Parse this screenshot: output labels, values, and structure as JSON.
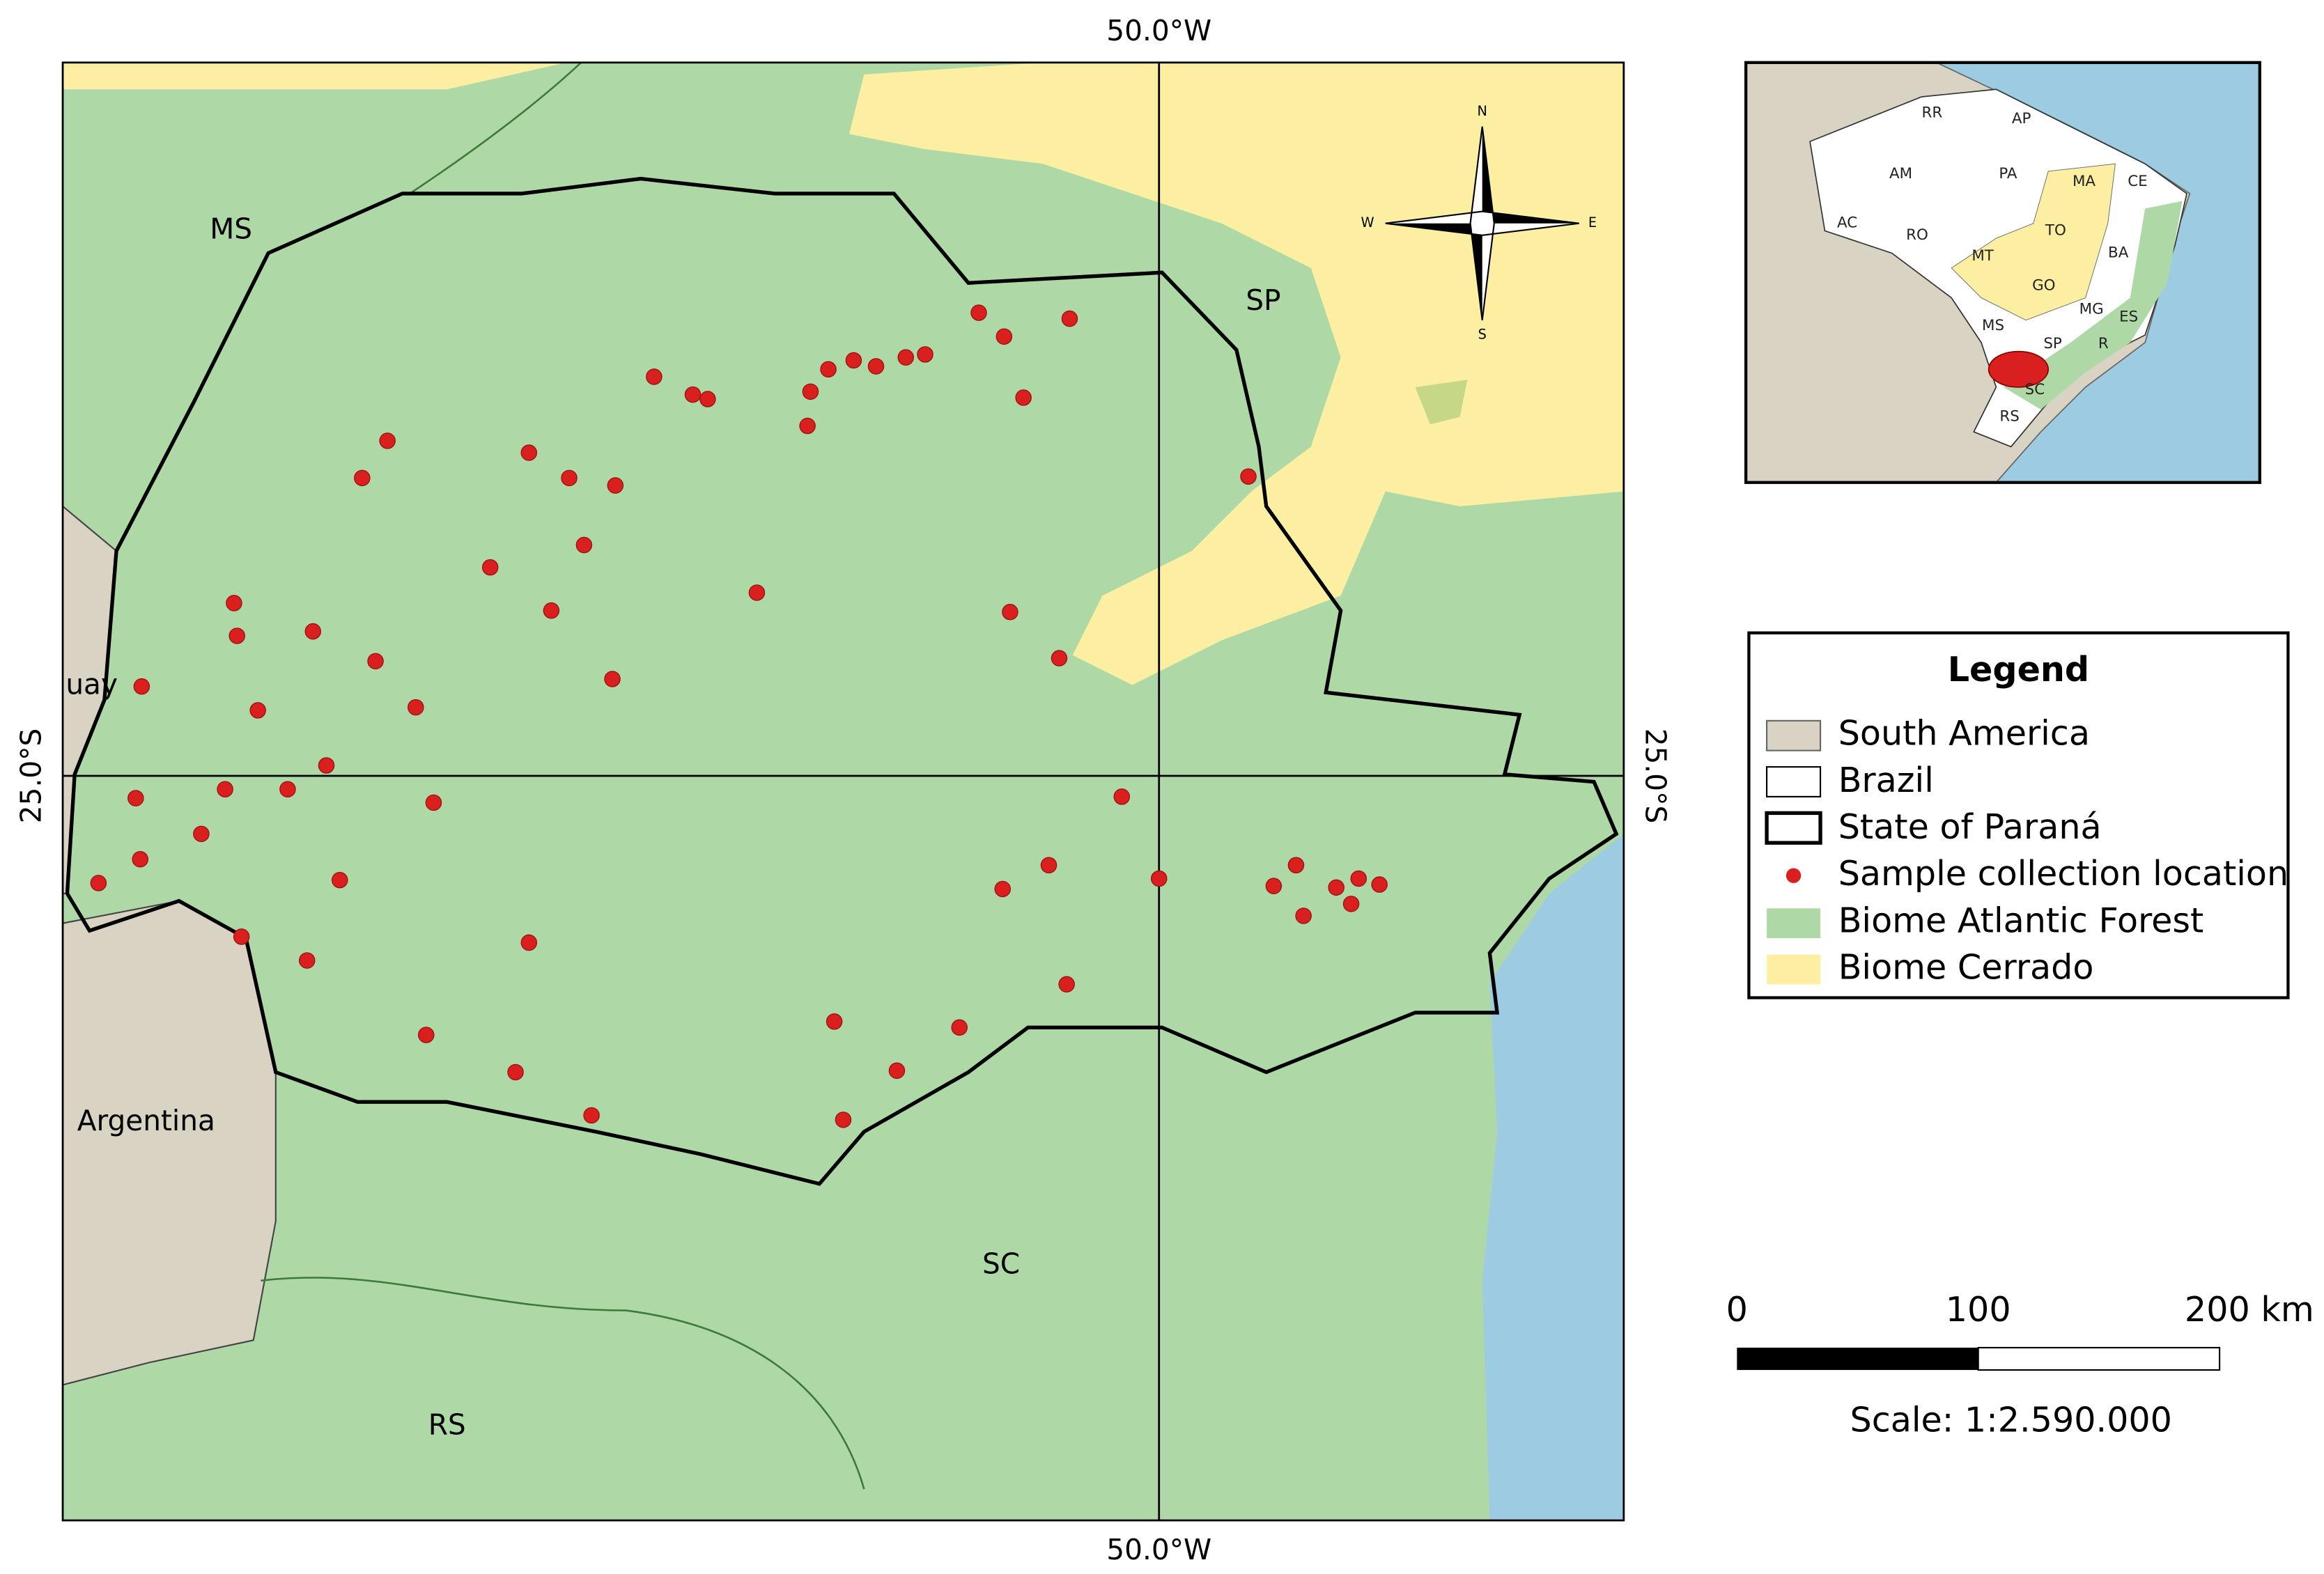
{
  "map": {
    "grid_labels": {
      "top": "50.0°W",
      "bottom": "50.0°W",
      "left": "25.0°S",
      "right": "25.0°S"
    },
    "place_labels": [
      "MS",
      "SP",
      "uay",
      "Argentina",
      "SC",
      "RS"
    ],
    "compass": {
      "n": "N",
      "s": "S",
      "e": "E",
      "w": "W"
    }
  },
  "inset": {
    "labels": [
      "RR",
      "AP",
      "AM",
      "PA",
      "MA",
      "CE",
      "AC",
      "RO",
      "TO",
      "MT",
      "BA",
      "GO",
      "MG",
      "ES",
      "MS",
      "SP",
      "R",
      "SC",
      "RS"
    ]
  },
  "legend": {
    "title": "Legend",
    "items": [
      "South America",
      "Brazil",
      "State of Paraná",
      "Sample collection location",
      "Biome Atlantic Forest",
      "Biome Cerrado"
    ]
  },
  "scale_bar": {
    "ticks": [
      "0",
      "100",
      "200 km"
    ],
    "scale": "Scale: 1:2.590.000"
  }
}
